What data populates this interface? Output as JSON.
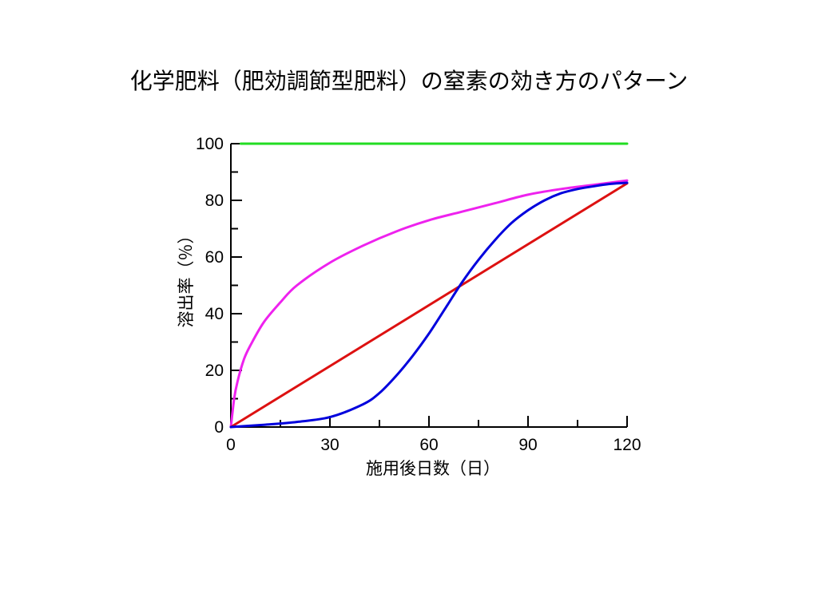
{
  "slide": {
    "title": "化学肥料（肥効調節型肥料）の窒素の効き方のパターン"
  },
  "chart_data": {
    "type": "line",
    "title": "化学肥料（肥効調節型肥料）の窒素の効き方のパターン",
    "xlabel": "施用後日数（日）",
    "ylabel": "溶出率（％）",
    "xlim": [
      0,
      120
    ],
    "ylim": [
      0,
      100
    ],
    "x_ticks": [
      0,
      30,
      60,
      90,
      120
    ],
    "y_ticks": [
      0,
      20,
      40,
      60,
      80,
      100
    ],
    "x_tick_labels": [
      "0",
      "30",
      "60",
      "90",
      "120"
    ],
    "y_tick_labels": [
      "0",
      "20",
      "40",
      "60",
      "80",
      "100"
    ],
    "grid": false,
    "legend": "none",
    "series": [
      {
        "key": "green",
        "color": "#22dd22",
        "x": [
          3,
          120
        ],
        "y": [
          100,
          100
        ]
      },
      {
        "key": "magenta",
        "color": "#ee22ee",
        "x": [
          0,
          1,
          2,
          4,
          6,
          10,
          15,
          20,
          30,
          40,
          50,
          60,
          70,
          80,
          90,
          100,
          110,
          120
        ],
        "y": [
          0,
          10,
          16,
          24,
          29,
          37,
          44,
          50,
          58,
          64,
          69,
          73,
          76,
          79,
          82,
          84,
          85.5,
          87
        ]
      },
      {
        "key": "red",
        "color": "#dd1111",
        "x": [
          0,
          120
        ],
        "y": [
          0,
          86
        ]
      },
      {
        "key": "blue",
        "color": "#0000dd",
        "x": [
          0,
          10,
          20,
          30,
          40,
          45,
          50,
          55,
          60,
          65,
          70,
          75,
          80,
          85,
          90,
          95,
          100,
          105,
          110,
          115,
          120
        ],
        "y": [
          0,
          0.8,
          1.8,
          3.5,
          8,
          12,
          18,
          25,
          33,
          42,
          51,
          59,
          66,
          72,
          76.5,
          80,
          82.5,
          84,
          85,
          85.8,
          86.2
        ]
      }
    ]
  }
}
